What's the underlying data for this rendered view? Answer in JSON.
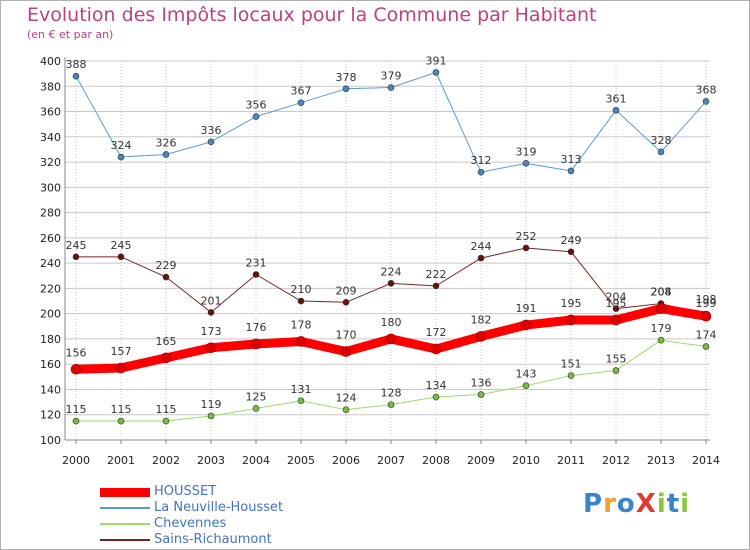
{
  "title": "Evolution des Impôts locaux pour la Commune par Habitant",
  "subtitle": "(en € et par an)",
  "logo": {
    "text": "ProXiti",
    "letters": [
      "P",
      "r",
      "o",
      "X",
      "i",
      "t",
      "i"
    ],
    "colors": [
      "#3a84c8",
      "#f0a030",
      "#3a84c8",
      "#e23b2c",
      "#8cc43a",
      "#3a84c8",
      "#8cc43a"
    ]
  },
  "colors": {
    "title": "#c0407f",
    "grid": "#c8c8c8",
    "axis": "#888888"
  },
  "chart_data": {
    "type": "line",
    "title": "Evolution des Impôts locaux pour la Commune par Habitant",
    "subtitle": "(en € et par an)",
    "x": [
      "2000",
      "2001",
      "2002",
      "2003",
      "2004",
      "2005",
      "2006",
      "2007",
      "2008",
      "2009",
      "2010",
      "2011",
      "2012",
      "2013",
      "2014"
    ],
    "ylim": [
      100,
      400
    ],
    "yticks": [
      100,
      120,
      140,
      160,
      180,
      200,
      220,
      240,
      260,
      280,
      300,
      320,
      340,
      360,
      380,
      400
    ],
    "grid": true,
    "legend_position": "bottom-left",
    "series": [
      {
        "name": "HOUSSET",
        "color": "#ff0000",
        "point_color": "#dd0000",
        "width": 6,
        "values": [
          156,
          157,
          165,
          173,
          176,
          178,
          170,
          180,
          172,
          182,
          191,
          195,
          195,
          204,
          198
        ],
        "labels": [
          "156",
          "157",
          "165",
          "173",
          "176",
          "178",
          "170",
          "180",
          "172",
          "182",
          "191",
          "195",
          "195",
          "204",
          "198"
        ]
      },
      {
        "name": "La Neuville-Housset",
        "color": "#5b9bd5",
        "point_color": "#4a87c0",
        "width": 1,
        "values": [
          388,
          324,
          326,
          336,
          356,
          367,
          378,
          379,
          391,
          312,
          319,
          313,
          361,
          328,
          368
        ],
        "labels": [
          "388",
          "324",
          "326",
          "336",
          "356",
          "367",
          "378",
          "379",
          "391",
          "312",
          "319",
          "313",
          "361",
          "328",
          "368"
        ]
      },
      {
        "name": "Chevennes",
        "color": "#99dd66",
        "point_color": "#77bb44",
        "width": 1,
        "values": [
          115,
          115,
          115,
          119,
          125,
          131,
          124,
          128,
          134,
          136,
          143,
          151,
          155,
          179,
          174
        ],
        "labels": [
          "115",
          "115",
          "115",
          "119",
          "125",
          "131",
          "124",
          "128",
          "134",
          "136",
          "143",
          "151",
          "155",
          "179",
          "174"
        ]
      },
      {
        "name": "Sains-Richaumont",
        "color": "#7a2222",
        "point_color": "#661111",
        "width": 1,
        "values": [
          245,
          245,
          229,
          201,
          231,
          210,
          209,
          224,
          222,
          244,
          252,
          249,
          204,
          208,
          199
        ],
        "labels": [
          "245",
          "245",
          "229",
          "201",
          "231",
          "210",
          "209",
          "224",
          "222",
          "244",
          "252",
          "249",
          "204",
          "208",
          "199"
        ]
      }
    ]
  }
}
